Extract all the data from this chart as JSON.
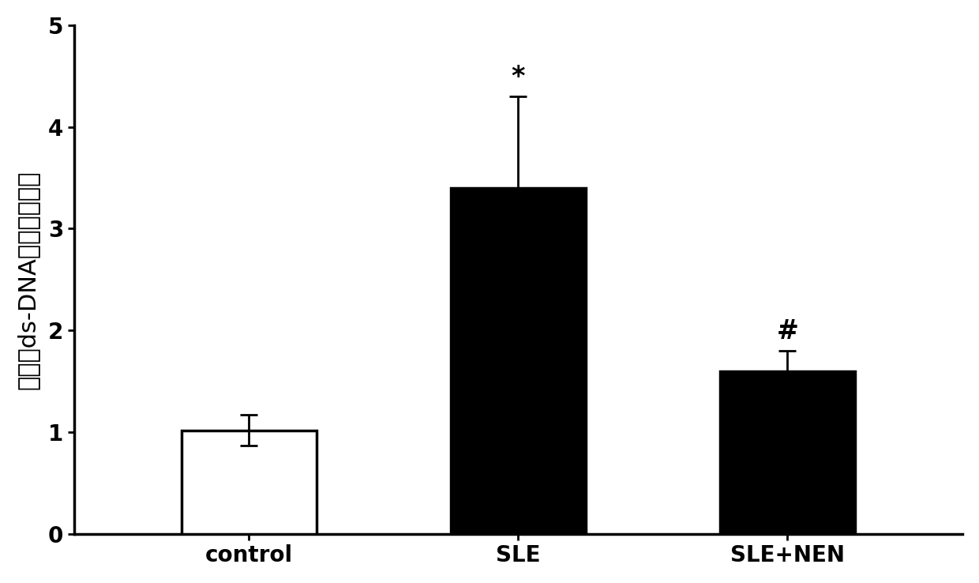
{
  "categories": [
    "control",
    "SLE",
    "SLE+NEN"
  ],
  "values": [
    1.02,
    3.4,
    1.6
  ],
  "errors": [
    0.15,
    0.9,
    0.2
  ],
  "bar_colors": [
    "white",
    "black",
    "black"
  ],
  "bar_edgecolors": [
    "black",
    "black",
    "black"
  ],
  "bar_linewidth": 2.5,
  "annotations": [
    "",
    "*",
    "#"
  ],
  "annotation_fontsize": 24,
  "ylim": [
    0,
    5
  ],
  "yticks": [
    0,
    1,
    2,
    3,
    4,
    5
  ],
  "ylabel_chars": [
    "血清抗ds-DNA抗体相对含量"
  ],
  "ylabel_fontsize": 22,
  "tick_fontsize": 20,
  "xlabel_fontsize": 20,
  "bar_width": 0.5,
  "x_positions": [
    0,
    1,
    2
  ],
  "figsize": [
    12.4,
    7.38
  ],
  "dpi": 100,
  "error_capsize": 8,
  "error_linewidth": 2.0,
  "background_color": "white",
  "spine_linewidth": 2.5
}
